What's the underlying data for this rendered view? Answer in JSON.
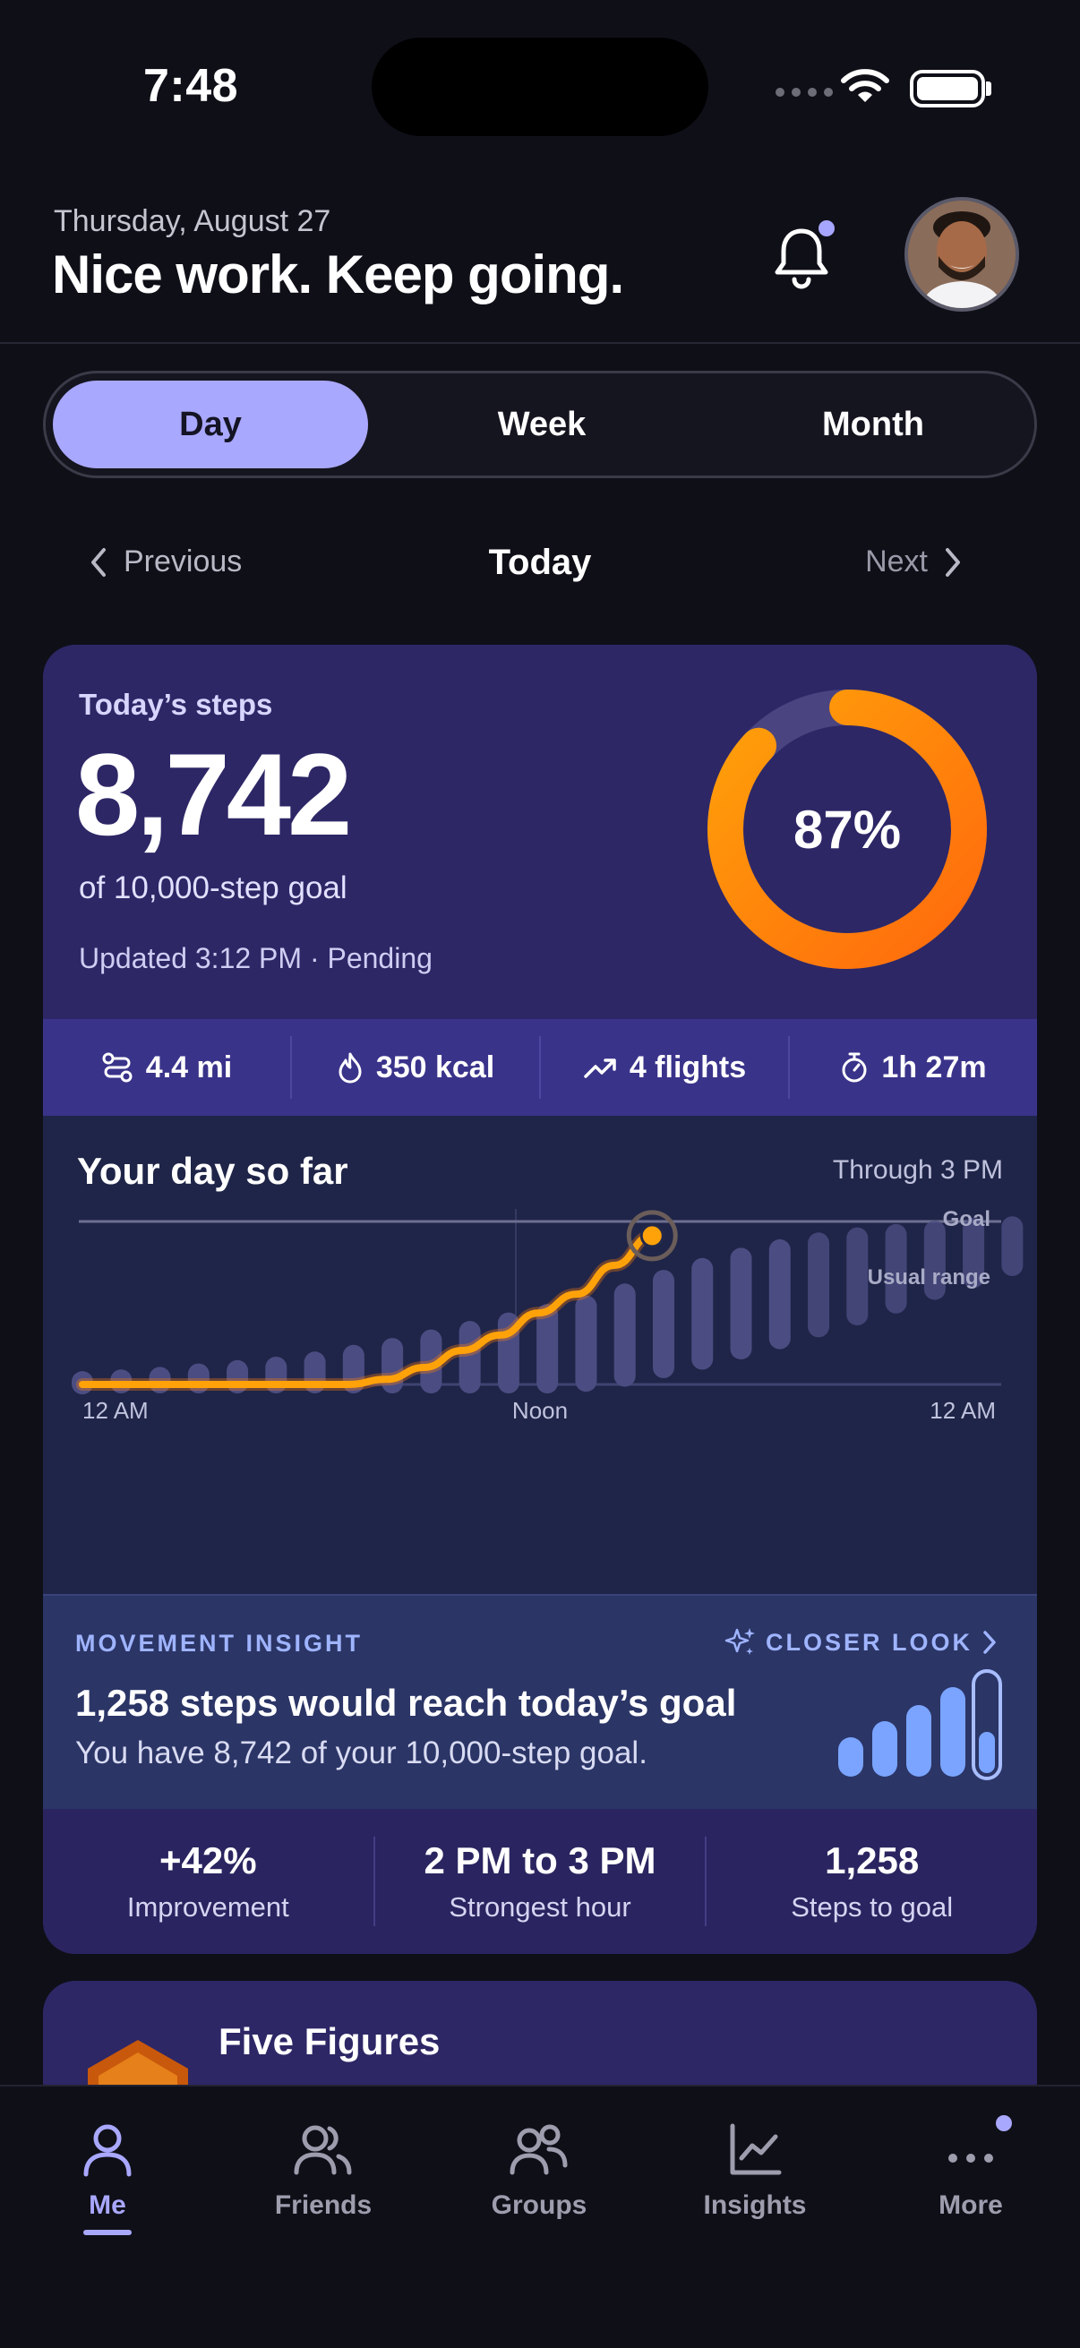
{
  "status_bar": {
    "time": "7:48"
  },
  "header": {
    "date": "Thursday, August 27",
    "headline": "Nice work. Keep going."
  },
  "segmented": {
    "options": [
      "Day",
      "Week",
      "Month"
    ],
    "selected": "Day"
  },
  "date_nav": {
    "previous": "Previous",
    "current": "Today",
    "next": "Next"
  },
  "steps_card": {
    "label": "Today’s steps",
    "value": "8,742",
    "goal_text": "of 10,000-step goal",
    "updated": "Updated 3:12 PM · Pending",
    "progress_percent": "87%",
    "progress_fraction": 0.87,
    "metrics": [
      {
        "icon": "route-icon",
        "text": "4.4 mi"
      },
      {
        "icon": "flame-icon",
        "text": "350 kcal"
      },
      {
        "icon": "trending-up-icon",
        "text": "4 flights"
      },
      {
        "icon": "stopwatch-icon",
        "text": "1h 27m"
      }
    ]
  },
  "chart": {
    "title": "Your day so far",
    "subtitle": "Through 3 PM",
    "goal_label": "Goal",
    "range_label": "Usual range",
    "x_labels": [
      "12 AM",
      "Noon",
      "12 AM"
    ]
  },
  "chart_data": {
    "type": "line",
    "x": [
      "12 AM",
      "1 AM",
      "2 AM",
      "3 AM",
      "4 AM",
      "5 AM",
      "6 AM",
      "7 AM",
      "8 AM",
      "9 AM",
      "10 AM",
      "11 AM",
      "Noon",
      "1 PM",
      "2 PM",
      "3 PM"
    ],
    "series": [
      {
        "values": [
          0,
          0,
          0,
          0,
          0,
          0,
          0,
          0,
          300,
          1000,
          2000,
          2900,
          4200,
          5300,
          7000,
          8742
        ]
      }
    ],
    "usual_range_high": [
      150,
      250,
      400,
      600,
      800,
      1000,
      1300,
      1700,
      2100,
      2600,
      3100,
      3600,
      4100,
      4600,
      5300,
      6100,
      6800,
      7400,
      7900,
      8300,
      8600,
      8800,
      9000,
      9150,
      9250
    ],
    "usual_range_low": [
      0,
      0,
      0,
      0,
      0,
      0,
      0,
      0,
      0,
      0,
      0,
      0,
      0,
      200,
      500,
      1000,
      1500,
      2100,
      2700,
      3400,
      4100,
      4800,
      5600,
      6300,
      7000
    ],
    "goal": 10000,
    "ylim": [
      0,
      10000
    ],
    "colors": {
      "line": "#ffa20a",
      "range": "#4b4d82",
      "goal": "#6d6f90"
    }
  },
  "insight": {
    "label": "MOVEMENT INSIGHT",
    "more": "CLOSER LOOK",
    "title": "1,258 steps would reach today’s goal",
    "subtitle": "You have 8,742 of your 10,000-step goal."
  },
  "stats": [
    {
      "value": "+42%",
      "label": "Improvement"
    },
    {
      "value": "2 PM to 3 PM",
      "label": "Strongest hour"
    },
    {
      "value": "1,258",
      "label": "Steps to goal"
    }
  ],
  "next_card": {
    "title": "Five Figures"
  },
  "tabbar": {
    "items": [
      {
        "label": "Me",
        "icon": "person-icon",
        "active": true
      },
      {
        "label": "Friends",
        "icon": "friends-icon",
        "active": false
      },
      {
        "label": "Groups",
        "icon": "groups-icon",
        "active": false
      },
      {
        "label": "Insights",
        "icon": "chart-icon",
        "active": false
      },
      {
        "label": "More",
        "icon": "more-icon",
        "active": false
      }
    ]
  }
}
